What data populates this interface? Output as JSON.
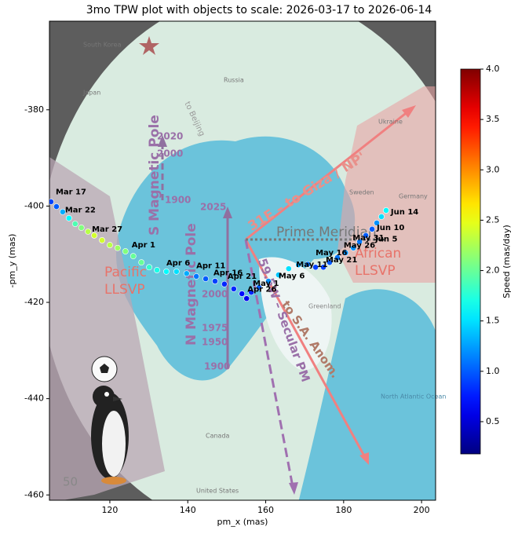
{
  "chart_data": {
    "type": "scatter",
    "title": "3mo TPW plot with objects to scale: 2026-03-17 to 2026-06-14",
    "x_label": "pm_x (mas)",
    "y_label": "-pm_y (mas)",
    "xlim": [
      104.5,
      203.6
    ],
    "ylim": [
      -461.1,
      -361.6
    ],
    "xticks": [
      120,
      140,
      160,
      180,
      200
    ],
    "yticks": [
      -380,
      -400,
      -420,
      -440,
      -460
    ],
    "x": [
      104.9,
      106.3,
      107.9,
      109.5,
      111.1,
      112.7,
      114.4,
      116.0,
      118.0,
      120.0,
      122.0,
      124.0,
      126.0,
      128.1,
      130.1,
      132.1,
      134.5,
      137.1,
      139.7,
      142.2,
      144.6,
      147.0,
      149.4,
      151.8,
      153.9,
      155.1,
      156.3,
      158.3,
      160.7,
      163.3,
      165.9,
      168.4,
      170.8,
      172.8,
      174.8,
      176.4,
      178.4,
      180.5,
      182.5,
      184.1,
      185.7,
      187.3,
      188.5,
      189.7,
      190.9
    ],
    "y": [
      -399.1,
      -400.1,
      -401.2,
      -402.5,
      -403.7,
      -404.5,
      -405.3,
      -406.1,
      -407.1,
      -408.1,
      -408.7,
      -409.4,
      -410.4,
      -411.7,
      -412.7,
      -413.3,
      -413.6,
      -413.6,
      -414.0,
      -414.6,
      -415.1,
      -415.6,
      -416.2,
      -417.2,
      -418.2,
      -419.2,
      -417.9,
      -416.9,
      -415.6,
      -414.3,
      -413.0,
      -412.2,
      -412.1,
      -412.7,
      -412.7,
      -411.7,
      -410.7,
      -409.7,
      -408.7,
      -407.4,
      -406.1,
      -404.8,
      -403.5,
      -402.2,
      -400.9
    ],
    "speed": [
      0.9,
      1.0,
      1.3,
      1.6,
      1.9,
      2.1,
      2.3,
      2.4,
      2.4,
      2.3,
      2.2,
      2.1,
      2.0,
      2.0,
      1.8,
      1.7,
      1.6,
      1.5,
      1.3,
      1.1,
      1.0,
      0.9,
      0.8,
      0.8,
      0.7,
      0.6,
      0.8,
      1.0,
      1.2,
      1.4,
      1.5,
      1.3,
      1.1,
      0.9,
      0.9,
      1.0,
      1.1,
      1.2,
      1.2,
      1.1,
      1.0,
      1.0,
      1.2,
      1.5,
      1.6
    ],
    "colormap": "jet",
    "colorbar": {
      "label": "Speed (mas/day)",
      "lim": [
        0.18,
        4.0
      ],
      "ticks": [
        0.5,
        {
          "value": 1,
          "label": "1.0"
        },
        1.5,
        {
          "value": 2,
          "label": "2.0"
        },
        2.5,
        {
          "value": 3,
          "label": "3.0"
        },
        3.5,
        {
          "value": 4,
          "label": "4.0"
        }
      ]
    },
    "annotations": [
      {
        "text": "Mar 17",
        "x": 106.1,
        "y": -397.1
      },
      {
        "text": "Mar 22",
        "x": 108.5,
        "y": -400.8
      },
      {
        "text": "Mar 27",
        "x": 115.4,
        "y": -404.8
      },
      {
        "text": "Apr 1",
        "x": 125.6,
        "y": -408.1
      },
      {
        "text": "Apr 6",
        "x": 134.5,
        "y": -411.8
      },
      {
        "text": "Apr 11",
        "x": 142.2,
        "y": -412.4
      },
      {
        "text": "Apr 16",
        "x": 146.6,
        "y": -413.9
      },
      {
        "text": "Apr 21",
        "x": 150.2,
        "y": -414.6
      },
      {
        "text": "Apr 26",
        "x": 155.3,
        "y": -417.3
      },
      {
        "text": "May 1",
        "x": 156.7,
        "y": -416.1
      },
      {
        "text": "May 6",
        "x": 163.3,
        "y": -414.5
      },
      {
        "text": "May 11",
        "x": 167.8,
        "y": -412.2
      },
      {
        "text": "May 16",
        "x": 172.8,
        "y": -409.7
      },
      {
        "text": "May 21",
        "x": 175.4,
        "y": -411.2
      },
      {
        "text": "May 26",
        "x": 180.0,
        "y": -408.2
      },
      {
        "text": "May 31",
        "x": 182.3,
        "y": -406.6
      },
      {
        "text": "Jun 5",
        "x": 188.1,
        "y": -406.9
      },
      {
        "text": "Jun 10",
        "x": 188.5,
        "y": -404.5
      },
      {
        "text": "Jun 14",
        "x": 192.1,
        "y": -401.2
      }
    ]
  },
  "map_labels": [
    "Prime Meridian",
    "31E – to Giza / NP'",
    "59.5W – Secular PM",
    "to S.A. Anom.",
    "S Magnetic Pole",
    "N Magnetic Pole",
    "2020",
    "2000",
    "1900",
    "2025",
    "2000",
    "1975",
    "1950",
    "1900",
    "Pacific",
    "LLSVP",
    "African",
    "LLSVP",
    "to Beijing",
    "Russia",
    "Greenland",
    "North Atlantic Ocean",
    "Canada",
    "United States",
    "Japan",
    "South Korea",
    "Sweden",
    "Ukraine",
    "Germany",
    "50"
  ]
}
